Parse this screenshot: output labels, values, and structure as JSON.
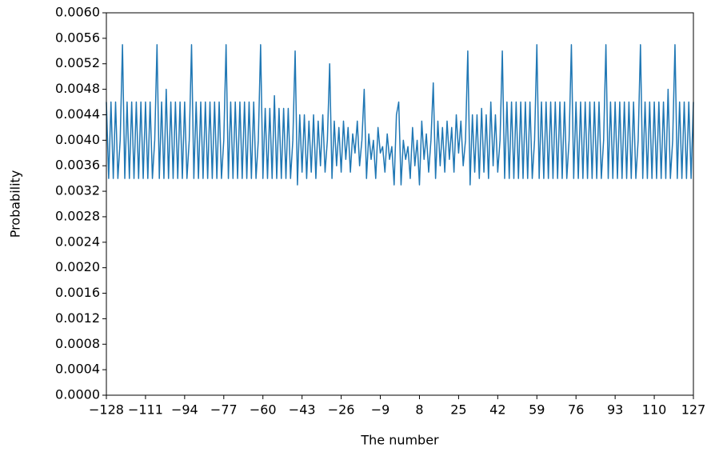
{
  "chart_data": {
    "type": "line",
    "xlabel": "The number",
    "ylabel": "Probability",
    "x": [
      -128,
      -127,
      -126,
      -125,
      -124,
      -123,
      -122,
      -121,
      -120,
      -119,
      -118,
      -117,
      -116,
      -115,
      -114,
      -113,
      -112,
      -111,
      -110,
      -109,
      -108,
      -107,
      -106,
      -105,
      -104,
      -103,
      -102,
      -101,
      -100,
      -99,
      -98,
      -97,
      -96,
      -95,
      -94,
      -93,
      -92,
      -91,
      -90,
      -89,
      -88,
      -87,
      -86,
      -85,
      -84,
      -83,
      -82,
      -81,
      -80,
      -79,
      -78,
      -77,
      -76,
      -75,
      -74,
      -73,
      -72,
      -71,
      -70,
      -69,
      -68,
      -67,
      -66,
      -65,
      -64,
      -63,
      -62,
      -61,
      -60,
      -59,
      -58,
      -57,
      -56,
      -55,
      -54,
      -53,
      -52,
      -51,
      -50,
      -49,
      -48,
      -47,
      -46,
      -45,
      -44,
      -43,
      -42,
      -41,
      -40,
      -39,
      -38,
      -37,
      -36,
      -35,
      -34,
      -33,
      -32,
      -31,
      -30,
      -29,
      -28,
      -27,
      -26,
      -25,
      -24,
      -23,
      -22,
      -21,
      -20,
      -19,
      -18,
      -17,
      -16,
      -15,
      -14,
      -13,
      -12,
      -11,
      -10,
      -9,
      -8,
      -7,
      -6,
      -5,
      -4,
      -3,
      -2,
      -1,
      0,
      1,
      2,
      3,
      4,
      5,
      6,
      7,
      8,
      9,
      10,
      11,
      12,
      13,
      14,
      15,
      16,
      17,
      18,
      19,
      20,
      21,
      22,
      23,
      24,
      25,
      26,
      27,
      28,
      29,
      30,
      31,
      32,
      33,
      34,
      35,
      36,
      37,
      38,
      39,
      40,
      41,
      42,
      43,
      44,
      45,
      46,
      47,
      48,
      49,
      50,
      51,
      52,
      53,
      54,
      55,
      56,
      57,
      58,
      59,
      60,
      61,
      62,
      63,
      64,
      65,
      66,
      67,
      68,
      69,
      70,
      71,
      72,
      73,
      74,
      75,
      76,
      77,
      78,
      79,
      80,
      81,
      82,
      83,
      84,
      85,
      86,
      87,
      88,
      89,
      90,
      91,
      92,
      93,
      94,
      95,
      96,
      97,
      98,
      99,
      100,
      101,
      102,
      103,
      104,
      105,
      106,
      107,
      108,
      109,
      110,
      111,
      112,
      113,
      114,
      115,
      116,
      117,
      118,
      119,
      120,
      121,
      122,
      123,
      124,
      125,
      126,
      127
    ],
    "series": [
      {
        "color": "#1f77b4",
        "values": [
          0.0046,
          0.0034,
          0.0046,
          0.0034,
          0.0046,
          0.0034,
          0.004,
          0.0055,
          0.0034,
          0.0046,
          0.0034,
          0.0046,
          0.0034,
          0.0046,
          0.0034,
          0.0046,
          0.0034,
          0.0046,
          0.0034,
          0.0046,
          0.0034,
          0.004,
          0.0055,
          0.0034,
          0.0046,
          0.0034,
          0.0048,
          0.0034,
          0.0046,
          0.0034,
          0.0046,
          0.0034,
          0.0046,
          0.0034,
          0.0046,
          0.0034,
          0.004,
          0.0055,
          0.0034,
          0.0046,
          0.0034,
          0.0046,
          0.0034,
          0.0046,
          0.0034,
          0.0046,
          0.0034,
          0.0046,
          0.0034,
          0.0046,
          0.0034,
          0.004,
          0.0055,
          0.0034,
          0.0046,
          0.0034,
          0.0046,
          0.0034,
          0.0046,
          0.0034,
          0.0046,
          0.0034,
          0.0046,
          0.0034,
          0.0046,
          0.0034,
          0.004,
          0.0055,
          0.0034,
          0.0045,
          0.0034,
          0.0045,
          0.0034,
          0.0047,
          0.0034,
          0.0045,
          0.0034,
          0.0045,
          0.0034,
          0.0045,
          0.0034,
          0.004,
          0.0054,
          0.0033,
          0.0044,
          0.0035,
          0.0044,
          0.0034,
          0.0043,
          0.0035,
          0.0044,
          0.0034,
          0.0043,
          0.0036,
          0.0044,
          0.0035,
          0.004,
          0.0052,
          0.0034,
          0.0043,
          0.0036,
          0.0042,
          0.0035,
          0.0043,
          0.0037,
          0.0042,
          0.0035,
          0.0041,
          0.0038,
          0.0043,
          0.0036,
          0.004,
          0.0048,
          0.0034,
          0.0041,
          0.0037,
          0.004,
          0.0034,
          0.0042,
          0.0038,
          0.0039,
          0.0035,
          0.0041,
          0.0037,
          0.0039,
          0.0033,
          0.0044,
          0.0046,
          0.0033,
          0.004,
          0.0037,
          0.0039,
          0.0034,
          0.0042,
          0.0036,
          0.004,
          0.0033,
          0.0043,
          0.0037,
          0.0041,
          0.0035,
          0.004,
          0.0049,
          0.0034,
          0.0043,
          0.0036,
          0.0042,
          0.0035,
          0.0043,
          0.0037,
          0.0042,
          0.0035,
          0.0044,
          0.0038,
          0.0043,
          0.0036,
          0.004,
          0.0054,
          0.0033,
          0.0044,
          0.0035,
          0.0044,
          0.0034,
          0.0045,
          0.0035,
          0.0044,
          0.0034,
          0.0046,
          0.0036,
          0.0044,
          0.0035,
          0.004,
          0.0054,
          0.0034,
          0.0046,
          0.0034,
          0.0046,
          0.0034,
          0.0046,
          0.0034,
          0.0046,
          0.0034,
          0.0046,
          0.0034,
          0.0046,
          0.0034,
          0.004,
          0.0055,
          0.0034,
          0.0046,
          0.0034,
          0.0046,
          0.0034,
          0.0046,
          0.0034,
          0.0046,
          0.0034,
          0.0046,
          0.0034,
          0.0046,
          0.0034,
          0.004,
          0.0055,
          0.0034,
          0.0046,
          0.0034,
          0.0046,
          0.0034,
          0.0046,
          0.0034,
          0.0046,
          0.0034,
          0.0046,
          0.0034,
          0.0046,
          0.0034,
          0.004,
          0.0055,
          0.0034,
          0.0046,
          0.0034,
          0.0046,
          0.0034,
          0.0046,
          0.0034,
          0.0046,
          0.0034,
          0.0046,
          0.0034,
          0.0046,
          0.0034,
          0.004,
          0.0055,
          0.0034,
          0.0046,
          0.0034,
          0.0046,
          0.0034,
          0.0046,
          0.0034,
          0.0046,
          0.0034,
          0.0046,
          0.0034,
          0.0048,
          0.0034,
          0.004,
          0.0055,
          0.0034,
          0.0046,
          0.0034,
          0.0046,
          0.0034,
          0.0046,
          0.0034,
          0.0046
        ]
      }
    ],
    "xlim": [
      -128,
      127
    ],
    "xticks": [
      {
        "value": -128,
        "label": "−128"
      },
      {
        "value": -111,
        "label": "−111"
      },
      {
        "value": -94,
        "label": "−94"
      },
      {
        "value": -77,
        "label": "−77"
      },
      {
        "value": -60,
        "label": "−60"
      },
      {
        "value": -43,
        "label": "−43"
      },
      {
        "value": -26,
        "label": "−26"
      },
      {
        "value": -9,
        "label": "−9"
      },
      8,
      25,
      42,
      59,
      76,
      93,
      110,
      127
    ],
    "ylim": [
      0,
      0.006
    ],
    "yticks": [
      {
        "value": 0,
        "label": "0.0000"
      },
      {
        "value": 0.0004,
        "label": "0.0004"
      },
      {
        "value": 0.0008,
        "label": "0.0008"
      },
      {
        "value": 0.0012,
        "label": "0.0012"
      },
      {
        "value": 0.0016,
        "label": "0.0016"
      },
      {
        "value": 0.002,
        "label": "0.0020"
      },
      {
        "value": 0.0024,
        "label": "0.0024"
      },
      {
        "value": 0.0028,
        "label": "0.0028"
      },
      {
        "value": 0.0032,
        "label": "0.0032"
      },
      {
        "value": 0.0036,
        "label": "0.0036"
      },
      {
        "value": 0.004,
        "label": "0.0040"
      },
      {
        "value": 0.0044,
        "label": "0.0044"
      },
      {
        "value": 0.0048,
        "label": "0.0048"
      },
      {
        "value": 0.0052,
        "label": "0.0052"
      },
      {
        "value": 0.0056,
        "label": "0.0056"
      },
      {
        "value": 0.006,
        "label": "0.0060"
      }
    ],
    "grid": false
  }
}
